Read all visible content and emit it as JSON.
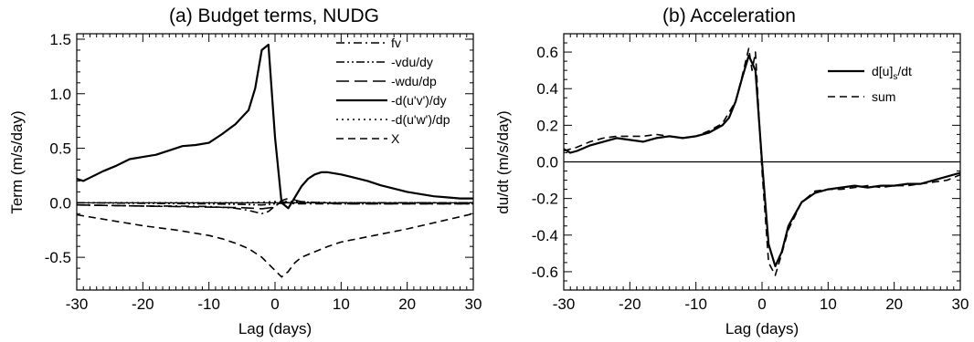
{
  "chart_data": [
    {
      "type": "line",
      "title": "(a) Budget terms, NUDG",
      "xlabel": "Lag (days)",
      "ylabel": "Term (m/s/day)",
      "xlim": [
        -30,
        30
      ],
      "ylim": [
        -0.8,
        1.55
      ],
      "xticks": [
        -30,
        -20,
        -10,
        0,
        10,
        20,
        30
      ],
      "yticks": [
        -0.5,
        0.0,
        0.5,
        1.0,
        1.5
      ],
      "ytick_labels": [
        "-0.5",
        "0.0",
        "0.5",
        "1.0",
        "1.5"
      ],
      "xtick_labels": [
        "-30",
        "-20",
        "-10",
        "0",
        "10",
        "20",
        "30"
      ],
      "zero_line": true,
      "legend_position": "top-right",
      "series": [
        {
          "name": "fv",
          "dash": "dashdot",
          "x": [
            -30,
            -25,
            -20,
            -15,
            -10,
            -6,
            -4,
            -2,
            -1,
            0,
            1,
            2,
            3,
            5,
            10,
            20,
            30
          ],
          "y": [
            -0.02,
            -0.025,
            -0.03,
            -0.03,
            -0.035,
            -0.05,
            -0.07,
            -0.1,
            -0.08,
            -0.03,
            0.01,
            0.0,
            -0.01,
            -0.01,
            -0.01,
            -0.01,
            -0.01
          ]
        },
        {
          "name": "-vdu/dy",
          "dash": "dashdotdot",
          "x": [
            -30,
            -20,
            -10,
            -5,
            -2,
            0,
            2,
            4,
            10,
            20,
            30
          ],
          "y": [
            0.0,
            -0.005,
            -0.01,
            -0.015,
            -0.02,
            -0.01,
            0.0,
            0.0,
            0.0,
            0.0,
            0.0
          ]
        },
        {
          "name": "-wdu/dp",
          "dash": "longdash",
          "x": [
            -30,
            -20,
            -10,
            -5,
            -2,
            0,
            1,
            2,
            4,
            10,
            20,
            30
          ],
          "y": [
            -0.02,
            -0.03,
            -0.04,
            -0.045,
            -0.055,
            -0.04,
            0.02,
            0.04,
            0.01,
            -0.01,
            -0.01,
            -0.01
          ]
        },
        {
          "name": "-d(u'v')/dy",
          "dash": "solid",
          "x": [
            -30,
            -29,
            -28,
            -26,
            -24,
            -22,
            -20,
            -18,
            -16,
            -14,
            -12,
            -10,
            -8,
            -6,
            -4,
            -3,
            -2,
            -1,
            0,
            1,
            2,
            3,
            4,
            5,
            6,
            7,
            8,
            10,
            12,
            14,
            16,
            18,
            20,
            22,
            24,
            26,
            28,
            30
          ],
          "y": [
            0.22,
            0.2,
            0.23,
            0.29,
            0.34,
            0.4,
            0.42,
            0.44,
            0.48,
            0.52,
            0.53,
            0.55,
            0.63,
            0.72,
            0.85,
            1.05,
            1.4,
            1.45,
            0.6,
            0.0,
            -0.05,
            0.05,
            0.15,
            0.22,
            0.26,
            0.28,
            0.28,
            0.26,
            0.23,
            0.2,
            0.16,
            0.13,
            0.1,
            0.08,
            0.06,
            0.05,
            0.04,
            0.04
          ]
        },
        {
          "name": "-d(u'w')/dp",
          "dash": "dotted",
          "x": [
            -30,
            -20,
            -10,
            -5,
            -2,
            0,
            2,
            5,
            10,
            20,
            30
          ],
          "y": [
            0.0,
            0.0,
            0.0,
            0.0,
            0.005,
            0.01,
            0.01,
            0.005,
            0.0,
            0.0,
            0.0
          ]
        },
        {
          "name": "X",
          "dash": "dashed",
          "x": [
            -30,
            -25,
            -20,
            -15,
            -10,
            -8,
            -6,
            -4,
            -2,
            0,
            1,
            2,
            3,
            4,
            6,
            8,
            10,
            15,
            20,
            25,
            30
          ],
          "y": [
            -0.11,
            -0.16,
            -0.21,
            -0.25,
            -0.3,
            -0.33,
            -0.37,
            -0.42,
            -0.5,
            -0.62,
            -0.68,
            -0.63,
            -0.55,
            -0.5,
            -0.45,
            -0.4,
            -0.36,
            -0.3,
            -0.24,
            -0.17,
            -0.1
          ]
        }
      ]
    },
    {
      "type": "line",
      "title": "(b) Acceleration",
      "xlabel": "Lag (days)",
      "ylabel": "du/dt (m/s/day)",
      "xlim": [
        -30,
        30
      ],
      "ylim": [
        -0.7,
        0.7
      ],
      "xticks": [
        -30,
        -20,
        -10,
        0,
        10,
        20,
        30
      ],
      "yticks": [
        -0.6,
        -0.4,
        -0.2,
        0.0,
        0.2,
        0.4,
        0.6
      ],
      "ytick_labels": [
        "-0.6",
        "-0.4",
        "-0.2",
        "0.0",
        "0.2",
        "0.4",
        "0.6"
      ],
      "xtick_labels": [
        "-30",
        "-20",
        "-10",
        "0",
        "10",
        "20",
        "30"
      ],
      "zero_line": true,
      "legend_position": "top-right",
      "series": [
        {
          "name": "d[u]s/dt",
          "name_main": "d[u]",
          "name_sub": "s",
          "name_tail": "/dt",
          "dash": "solid",
          "x": [
            -30,
            -29,
            -28,
            -26,
            -24,
            -22,
            -20,
            -18,
            -16,
            -14,
            -12,
            -10,
            -8,
            -6,
            -5,
            -4,
            -3,
            -2,
            -1,
            0,
            1,
            2,
            3,
            4,
            6,
            8,
            10,
            12,
            14,
            16,
            18,
            20,
            22,
            24,
            26,
            28,
            30
          ],
          "y": [
            0.07,
            0.05,
            0.06,
            0.09,
            0.11,
            0.13,
            0.12,
            0.11,
            0.13,
            0.14,
            0.13,
            0.14,
            0.16,
            0.2,
            0.24,
            0.33,
            0.46,
            0.58,
            0.5,
            0.0,
            -0.45,
            -0.57,
            -0.49,
            -0.35,
            -0.22,
            -0.17,
            -0.15,
            -0.14,
            -0.13,
            -0.14,
            -0.13,
            -0.13,
            -0.12,
            -0.12,
            -0.1,
            -0.08,
            -0.06
          ]
        },
        {
          "name": "sum",
          "dash": "dashed",
          "x": [
            -30,
            -28,
            -26,
            -24,
            -22,
            -20,
            -18,
            -16,
            -14,
            -12,
            -10,
            -8,
            -6,
            -4,
            -3,
            -2,
            -1.5,
            -1,
            0,
            1,
            2,
            3,
            4,
            6,
            8,
            10,
            12,
            14,
            16,
            18,
            20,
            22,
            24,
            26,
            28,
            30
          ],
          "y": [
            0.06,
            0.08,
            0.11,
            0.13,
            0.14,
            0.14,
            0.14,
            0.15,
            0.14,
            0.13,
            0.14,
            0.17,
            0.21,
            0.33,
            0.47,
            0.62,
            0.5,
            0.6,
            -0.05,
            -0.55,
            -0.62,
            -0.5,
            -0.37,
            -0.22,
            -0.16,
            -0.15,
            -0.15,
            -0.14,
            -0.13,
            -0.14,
            -0.13,
            -0.13,
            -0.12,
            -0.11,
            -0.1,
            -0.07
          ]
        }
      ]
    }
  ]
}
